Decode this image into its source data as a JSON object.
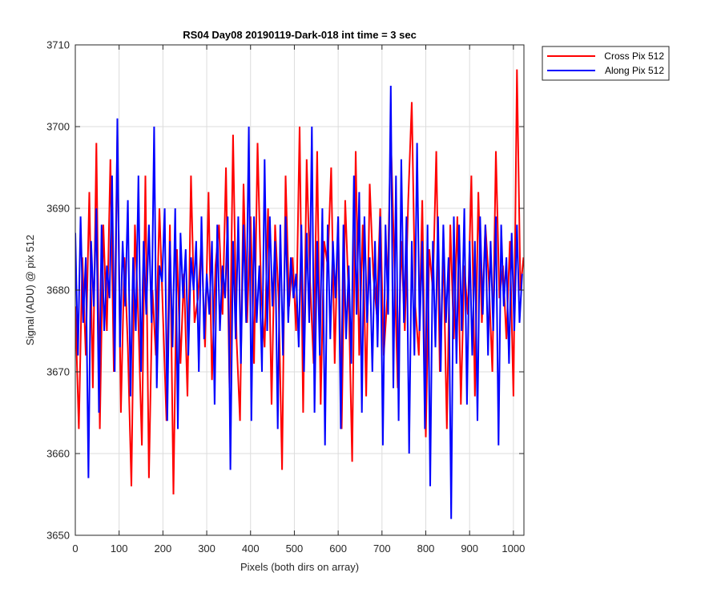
{
  "chart_data": {
    "type": "line",
    "title": "RS04 Day08 20190119-Dark-018 int time = 3 sec",
    "xlabel": "Pixels (both dirs on array)",
    "ylabel": "Signal (ADU) @ pix 512",
    "xlim": [
      0,
      1024
    ],
    "ylim": [
      3650,
      3710
    ],
    "xticks": [
      0,
      100,
      200,
      300,
      400,
      500,
      600,
      700,
      800,
      900,
      1000
    ],
    "yticks": [
      3650,
      3660,
      3670,
      3680,
      3690,
      3700,
      3710
    ],
    "grid": true,
    "legend_position": "outside-top-right",
    "series": [
      {
        "name": "Cross Pix 512",
        "color": "#ff0000",
        "x": [
          0,
          8,
          16,
          24,
          32,
          40,
          48,
          56,
          64,
          72,
          80,
          88,
          96,
          104,
          112,
          120,
          128,
          136,
          144,
          152,
          160,
          168,
          176,
          184,
          192,
          200,
          208,
          216,
          224,
          232,
          240,
          248,
          256,
          264,
          272,
          280,
          288,
          296,
          304,
          312,
          320,
          328,
          336,
          344,
          352,
          360,
          368,
          376,
          384,
          392,
          400,
          408,
          416,
          424,
          432,
          440,
          448,
          456,
          464,
          472,
          480,
          488,
          496,
          504,
          512,
          520,
          528,
          536,
          544,
          552,
          560,
          568,
          576,
          584,
          592,
          600,
          608,
          616,
          624,
          632,
          640,
          648,
          656,
          664,
          672,
          680,
          688,
          696,
          704,
          712,
          720,
          728,
          736,
          744,
          752,
          760,
          768,
          776,
          784,
          792,
          800,
          808,
          816,
          824,
          832,
          840,
          848,
          856,
          864,
          872,
          880,
          888,
          896,
          904,
          912,
          920,
          928,
          936,
          944,
          952,
          960,
          968,
          976,
          984,
          992,
          1000,
          1008,
          1016,
          1023
        ],
        "y": [
          3678,
          3663,
          3684,
          3672,
          3692,
          3668,
          3698,
          3663,
          3688,
          3675,
          3696,
          3670,
          3699,
          3665,
          3684,
          3673,
          3656,
          3688,
          3676,
          3661,
          3694,
          3657,
          3680,
          3672,
          3690,
          3677,
          3664,
          3688,
          3655,
          3685,
          3671,
          3682,
          3667,
          3694,
          3676,
          3679,
          3686,
          3673,
          3692,
          3669,
          3683,
          3688,
          3677,
          3695,
          3668,
          3699,
          3674,
          3664,
          3693,
          3676,
          3689,
          3671,
          3698,
          3680,
          3673,
          3690,
          3666,
          3688,
          3679,
          3658,
          3694,
          3678,
          3684,
          3675,
          3700,
          3665,
          3696,
          3681,
          3671,
          3697,
          3666,
          3686,
          3683,
          3695,
          3671,
          3689,
          3663,
          3691,
          3679,
          3659,
          3697,
          3672,
          3688,
          3667,
          3693,
          3682,
          3677,
          3690,
          3672,
          3679,
          3699,
          3684,
          3668,
          3686,
          3675,
          3691,
          3703,
          3678,
          3672,
          3691,
          3662,
          3685,
          3680,
          3697,
          3670,
          3685,
          3663,
          3688,
          3674,
          3689,
          3666,
          3683,
          3677,
          3694,
          3667,
          3692,
          3676,
          3688,
          3681,
          3670,
          3697,
          3679,
          3683,
          3674,
          3686,
          3667,
          3707,
          3680,
          3684
        ]
      },
      {
        "name": "Along Pix 512",
        "color": "#0000ff",
        "x": [
          0,
          6,
          12,
          18,
          24,
          30,
          36,
          42,
          48,
          54,
          60,
          66,
          72,
          78,
          84,
          90,
          96,
          102,
          108,
          114,
          120,
          126,
          132,
          138,
          144,
          150,
          156,
          162,
          168,
          174,
          180,
          186,
          192,
          198,
          204,
          210,
          216,
          222,
          228,
          234,
          240,
          246,
          252,
          258,
          264,
          270,
          276,
          282,
          288,
          294,
          300,
          306,
          312,
          318,
          324,
          330,
          336,
          342,
          348,
          354,
          360,
          366,
          372,
          378,
          384,
          390,
          396,
          402,
          408,
          414,
          420,
          426,
          432,
          438,
          444,
          450,
          456,
          462,
          468,
          474,
          480,
          486,
          492,
          498,
          504,
          510,
          516,
          522,
          528,
          534,
          540,
          546,
          552,
          558,
          564,
          570,
          576,
          582,
          588,
          594,
          600,
          606,
          612,
          618,
          624,
          630,
          636,
          642,
          648,
          654,
          660,
          666,
          672,
          678,
          684,
          690,
          696,
          702,
          708,
          714,
          720,
          726,
          732,
          738,
          744,
          750,
          756,
          762,
          768,
          774,
          780,
          786,
          792,
          798,
          804,
          810,
          816,
          822,
          828,
          834,
          840,
          846,
          852,
          858,
          864,
          870,
          876,
          882,
          888,
          894,
          900,
          906,
          912,
          918,
          924,
          930,
          936,
          942,
          948,
          954,
          960,
          966,
          972,
          978,
          984,
          990,
          996,
          1002,
          1008,
          1014,
          1020
        ],
        "y": [
          3687,
          3672,
          3689,
          3676,
          3684,
          3657,
          3686,
          3678,
          3690,
          3665,
          3688,
          3675,
          3683,
          3679,
          3694,
          3670,
          3701,
          3673,
          3686,
          3678,
          3691,
          3667,
          3684,
          3675,
          3694,
          3670,
          3686,
          3677,
          3688,
          3676,
          3700,
          3668,
          3683,
          3681,
          3690,
          3664,
          3686,
          3673,
          3690,
          3663,
          3687,
          3679,
          3685,
          3672,
          3684,
          3680,
          3686,
          3670,
          3689,
          3674,
          3682,
          3677,
          3686,
          3666,
          3688,
          3675,
          3683,
          3679,
          3689,
          3658,
          3686,
          3674,
          3689,
          3671,
          3688,
          3676,
          3700,
          3664,
          3689,
          3676,
          3683,
          3670,
          3696,
          3675,
          3689,
          3678,
          3686,
          3663,
          3688,
          3672,
          3689,
          3676,
          3684,
          3679,
          3682,
          3673,
          3688,
          3670,
          3687,
          3676,
          3700,
          3665,
          3686,
          3672,
          3690,
          3661,
          3688,
          3674,
          3686,
          3679,
          3689,
          3663,
          3688,
          3674,
          3683,
          3671,
          3694,
          3677,
          3692,
          3665,
          3689,
          3676,
          3684,
          3670,
          3686,
          3673,
          3689,
          3661,
          3688,
          3677,
          3705,
          3668,
          3694,
          3664,
          3696,
          3676,
          3689,
          3660,
          3686,
          3672,
          3698,
          3675,
          3686,
          3663,
          3688,
          3656,
          3686,
          3673,
          3689,
          3670,
          3688,
          3676,
          3684,
          3652,
          3689,
          3671,
          3688,
          3675,
          3690,
          3666,
          3686,
          3672,
          3686,
          3664,
          3689,
          3677,
          3688,
          3672,
          3686,
          3675,
          3689,
          3661,
          3688,
          3678,
          3684,
          3671,
          3687,
          3675,
          3688,
          3676,
          3682
        ]
      }
    ]
  }
}
